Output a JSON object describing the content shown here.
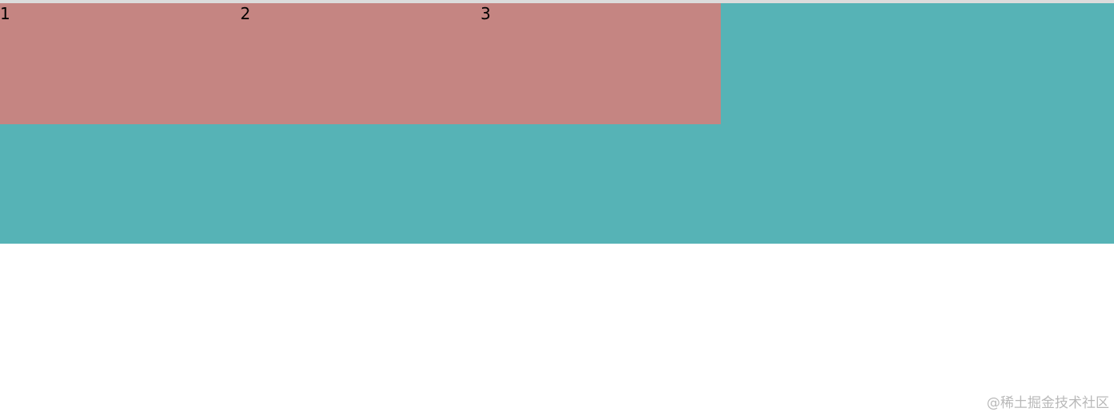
{
  "colors": {
    "outer": "#56b3b6",
    "inner": "#c58582"
  },
  "items": [
    {
      "label": "1"
    },
    {
      "label": "2"
    },
    {
      "label": "3"
    }
  ],
  "watermark": "@稀土掘金技术社区"
}
